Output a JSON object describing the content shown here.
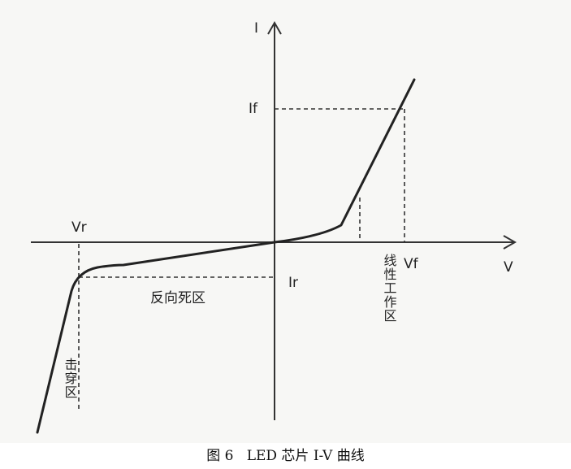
{
  "axes": {
    "y_label": "I",
    "x_label": "V"
  },
  "markers": {
    "if": "If",
    "vf": "Vf",
    "vr": "Vr",
    "ir": "Ir"
  },
  "regions": {
    "reverse_dead_zone": "反向死区",
    "linear_work_zone": "线性工作区",
    "breakdown_zone": "击穿区"
  },
  "caption": {
    "number": "图 6",
    "text": "LED 芯片 I-V 曲线"
  }
}
